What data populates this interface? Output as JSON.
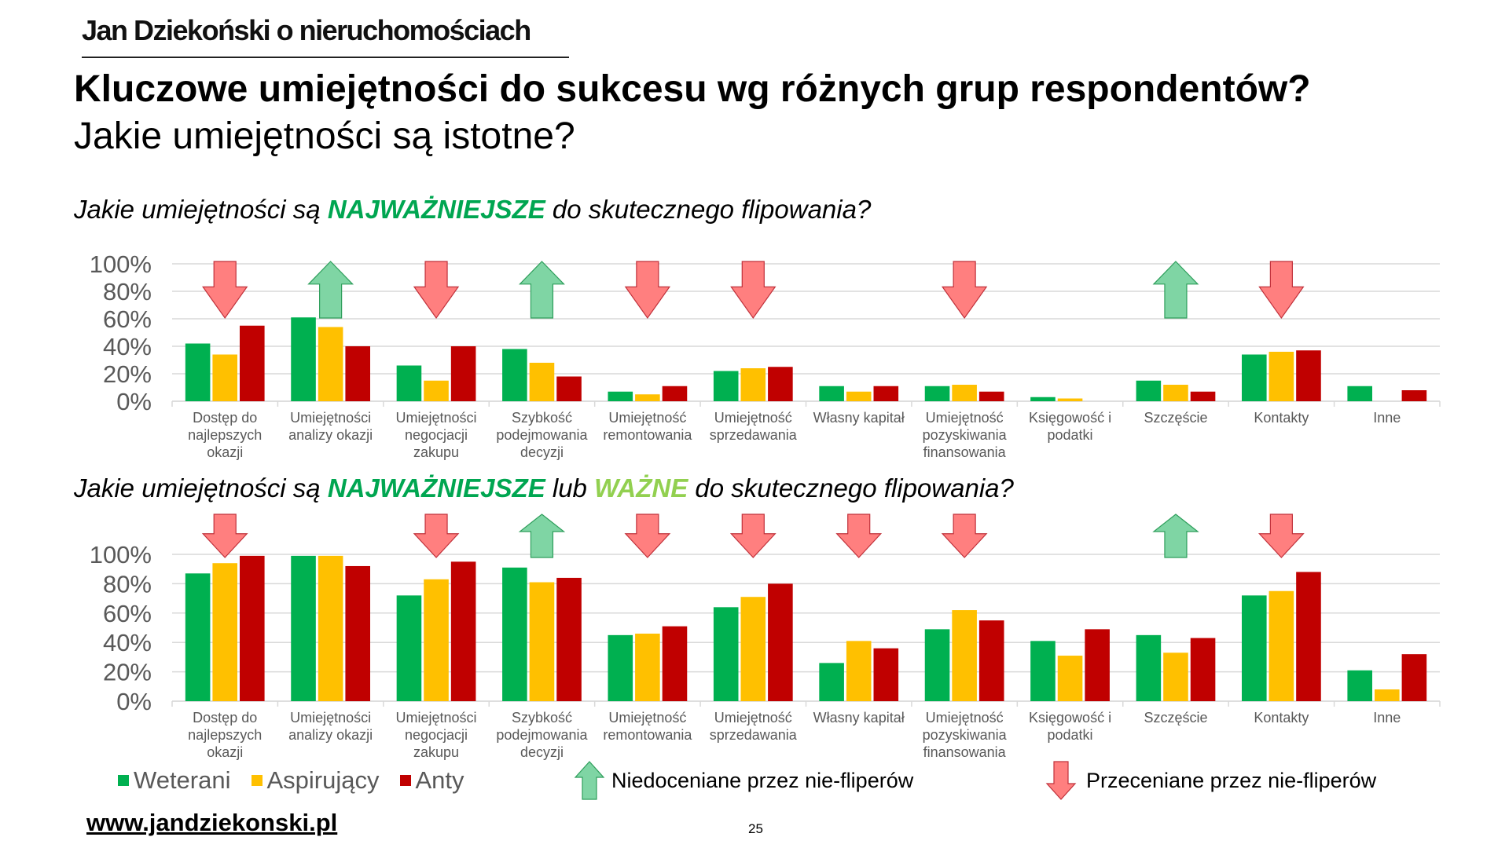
{
  "header": {
    "brand": "Jan Dziekoński o nieruchomościach",
    "title": "Kluczowe umiejętności do sukcesu wg różnych grup respondentów?",
    "subtitle": "Jakie umiejętności są istotne?"
  },
  "questions": {
    "q1": {
      "pre": "Jakie umiejętności są ",
      "highlight": "NAJWAŻNIEJSZE",
      "post": " do skutecznego flipowania?"
    },
    "q2": {
      "pre": "Jakie umiejętności są ",
      "highlight": "NAJWAŻNIEJSZE",
      "mid": " lub ",
      "highlight2": "WAŻNE",
      "post": " do skutecznego flipowania?"
    }
  },
  "colors": {
    "Weterani": "#00b050",
    "Aspirujący": "#ffc000",
    "Anty": "#c00000",
    "highlight": "#00a651",
    "highlight2": "#92d050",
    "arrow_up": "#7fd5a4",
    "arrow_down": "#ff7f7f"
  },
  "chart_data": [
    {
      "type": "bar",
      "title": "Jakie umiejętności są NAJWAŻNIEJSZE do skutecznego flipowania?",
      "categories": [
        [
          "Dostęp do",
          "najlepszych",
          "okazji"
        ],
        [
          "Umiejętności",
          "analizy okazji"
        ],
        [
          "Umiejętności",
          "negocjacji",
          "zakupu"
        ],
        [
          "Szybkość",
          "podejmowania",
          "decyzji"
        ],
        [
          "Umiejętność",
          "remontowania"
        ],
        [
          "Umiejętność",
          "sprzedawania"
        ],
        [
          "Własny kapitał"
        ],
        [
          "Umiejętność",
          "pozyskiwania",
          "finansowania"
        ],
        [
          "Księgowość i",
          "podatki"
        ],
        [
          "Szczęście"
        ],
        [
          "Kontakty"
        ],
        [
          "Inne"
        ]
      ],
      "series": [
        {
          "name": "Weterani",
          "values": [
            42,
            61,
            26,
            38,
            7,
            22,
            11,
            11,
            3,
            15,
            34,
            11
          ]
        },
        {
          "name": "Aspirujący",
          "values": [
            34,
            54,
            15,
            28,
            5,
            24,
            7,
            12,
            2,
            12,
            36,
            0
          ]
        },
        {
          "name": "Anty",
          "values": [
            55,
            40,
            40,
            18,
            11,
            25,
            11,
            7,
            0,
            7,
            37,
            8
          ]
        }
      ],
      "markers": [
        "down",
        "up",
        "down",
        "up",
        "down",
        "down",
        "",
        "down",
        "",
        "up",
        "down",
        ""
      ],
      "yticks": [
        "0%",
        "20%",
        "40%",
        "60%",
        "80%",
        "100%"
      ],
      "ylim": [
        0,
        100
      ],
      "grid": true
    },
    {
      "type": "bar",
      "title": "Jakie umiejętności są NAJWAŻNIEJSZE lub WAŻNE do skutecznego flipowania?",
      "categories": [
        [
          "Dostęp do",
          "najlepszych",
          "okazji"
        ],
        [
          "Umiejętności",
          "analizy okazji"
        ],
        [
          "Umiejętności",
          "negocjacji",
          "zakupu"
        ],
        [
          "Szybkość",
          "podejmowania",
          "decyzji"
        ],
        [
          "Umiejętność",
          "remontowania"
        ],
        [
          "Umiejętność",
          "sprzedawania"
        ],
        [
          "Własny kapitał"
        ],
        [
          "Umiejętność",
          "pozyskiwania",
          "finansowania"
        ],
        [
          "Księgowość i",
          "podatki"
        ],
        [
          "Szczęście"
        ],
        [
          "Kontakty"
        ],
        [
          "Inne"
        ]
      ],
      "series": [
        {
          "name": "Weterani",
          "values": [
            87,
            99,
            72,
            91,
            45,
            64,
            26,
            49,
            41,
            45,
            72,
            21
          ]
        },
        {
          "name": "Aspirujący",
          "values": [
            94,
            99,
            83,
            81,
            46,
            71,
            41,
            62,
            31,
            33,
            75,
            8
          ]
        },
        {
          "name": "Anty",
          "values": [
            99,
            92,
            95,
            84,
            51,
            80,
            36,
            55,
            49,
            43,
            88,
            32
          ]
        }
      ],
      "markers": [
        "down",
        "",
        "down",
        "up",
        "down",
        "down",
        "down",
        "down",
        "",
        "up",
        "down",
        ""
      ],
      "yticks": [
        "0%",
        "20%",
        "40%",
        "60%",
        "80%",
        "100%"
      ],
      "ylim": [
        0,
        100
      ],
      "grid": true
    }
  ],
  "legend": {
    "series": [
      "Weterani",
      "Aspirujący",
      "Anty"
    ],
    "up_label": "Niedoceniane przez nie-fliperów",
    "down_label": "Przeceniane przez nie-fliperów"
  },
  "footer": {
    "url": "www.jandziekonski.pl",
    "page": "25"
  }
}
